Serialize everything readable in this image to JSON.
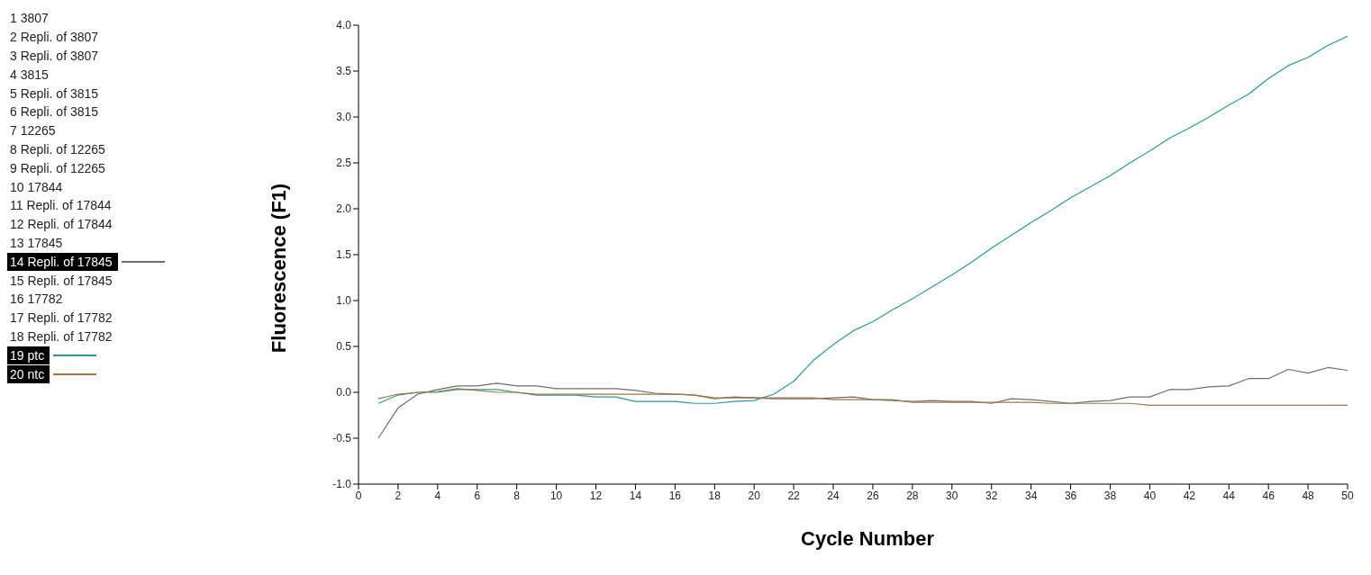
{
  "chart_data": {
    "type": "line",
    "xlabel": "Cycle Number",
    "ylabel": "Fluorescence (F1)",
    "x": [
      1,
      2,
      3,
      4,
      5,
      6,
      7,
      8,
      9,
      10,
      11,
      12,
      13,
      14,
      15,
      16,
      17,
      18,
      19,
      20,
      21,
      22,
      23,
      24,
      25,
      26,
      27,
      28,
      29,
      30,
      31,
      32,
      33,
      34,
      35,
      36,
      37,
      38,
      39,
      40,
      41,
      42,
      43,
      44,
      45,
      46,
      47,
      48,
      49,
      50
    ],
    "xlim": [
      0,
      50
    ],
    "xticks": [
      0,
      2,
      4,
      6,
      8,
      10,
      12,
      14,
      16,
      18,
      20,
      22,
      24,
      26,
      28,
      30,
      32,
      34,
      36,
      38,
      40,
      42,
      44,
      46,
      48,
      50
    ],
    "ylim": [
      -1,
      4
    ],
    "yticks": [
      {
        "value": -1,
        "label": "-1.0"
      },
      {
        "value": -0.5,
        "label": "-0.5"
      },
      {
        "value": 0,
        "label": "0.0"
      },
      {
        "value": 0.5,
        "label": "0.5"
      },
      {
        "value": 1,
        "label": "1.0"
      },
      {
        "value": 1.5,
        "label": "1.5"
      },
      {
        "value": 2,
        "label": "2.0"
      },
      {
        "value": 2.5,
        "label": "2.5"
      },
      {
        "value": 3,
        "label": "3.0"
      },
      {
        "value": 3.5,
        "label": "3.5"
      },
      {
        "value": 4,
        "label": "4.0"
      }
    ],
    "grid": false,
    "legend": "left",
    "marker": "none",
    "line_style": "solid",
    "series": [
      {
        "name": "1 3807",
        "values": [
          null,
          null,
          null,
          null,
          null,
          null,
          null,
          null,
          null,
          null,
          null,
          null,
          null,
          null,
          null,
          null,
          null,
          null,
          null,
          null,
          null,
          null,
          null,
          null,
          null,
          null,
          null,
          null,
          null,
          null,
          null,
          null,
          null,
          null,
          null,
          null,
          null,
          null,
          null,
          null,
          null,
          null,
          null,
          null,
          null,
          null,
          null,
          null,
          null,
          null
        ]
      },
      {
        "name": "2 Repli. of 3807",
        "values": [
          null,
          null,
          null,
          null,
          null,
          null,
          null,
          null,
          null,
          null,
          null,
          null,
          null,
          null,
          null,
          null,
          null,
          null,
          null,
          null,
          null,
          null,
          null,
          null,
          null,
          null,
          null,
          null,
          null,
          null,
          null,
          null,
          null,
          null,
          null,
          null,
          null,
          null,
          null,
          null,
          null,
          null,
          null,
          null,
          null,
          null,
          null,
          null,
          null,
          null
        ]
      },
      {
        "name": "3 Repli. of 3807",
        "values": [
          null,
          null,
          null,
          null,
          null,
          null,
          null,
          null,
          null,
          null,
          null,
          null,
          null,
          null,
          null,
          null,
          null,
          null,
          null,
          null,
          null,
          null,
          null,
          null,
          null,
          null,
          null,
          null,
          null,
          null,
          null,
          null,
          null,
          null,
          null,
          null,
          null,
          null,
          null,
          null,
          null,
          null,
          null,
          null,
          null,
          null,
          null,
          null,
          null,
          null
        ]
      },
      {
        "name": "4 3815",
        "values": [
          null,
          null,
          null,
          null,
          null,
          null,
          null,
          null,
          null,
          null,
          null,
          null,
          null,
          null,
          null,
          null,
          null,
          null,
          null,
          null,
          null,
          null,
          null,
          null,
          null,
          null,
          null,
          null,
          null,
          null,
          null,
          null,
          null,
          null,
          null,
          null,
          null,
          null,
          null,
          null,
          null,
          null,
          null,
          null,
          null,
          null,
          null,
          null,
          null,
          null
        ]
      },
      {
        "name": "5 Repli. of 3815",
        "values": [
          null,
          null,
          null,
          null,
          null,
          null,
          null,
          null,
          null,
          null,
          null,
          null,
          null,
          null,
          null,
          null,
          null,
          null,
          null,
          null,
          null,
          null,
          null,
          null,
          null,
          null,
          null,
          null,
          null,
          null,
          null,
          null,
          null,
          null,
          null,
          null,
          null,
          null,
          null,
          null,
          null,
          null,
          null,
          null,
          null,
          null,
          null,
          null,
          null,
          null
        ]
      },
      {
        "name": "6 Repli. of 3815",
        "values": [
          null,
          null,
          null,
          null,
          null,
          null,
          null,
          null,
          null,
          null,
          null,
          null,
          null,
          null,
          null,
          null,
          null,
          null,
          null,
          null,
          null,
          null,
          null,
          null,
          null,
          null,
          null,
          null,
          null,
          null,
          null,
          null,
          null,
          null,
          null,
          null,
          null,
          null,
          null,
          null,
          null,
          null,
          null,
          null,
          null,
          null,
          null,
          null,
          null,
          null
        ]
      },
      {
        "name": "7 12265",
        "values": [
          null,
          null,
          null,
          null,
          null,
          null,
          null,
          null,
          null,
          null,
          null,
          null,
          null,
          null,
          null,
          null,
          null,
          null,
          null,
          null,
          null,
          null,
          null,
          null,
          null,
          null,
          null,
          null,
          null,
          null,
          null,
          null,
          null,
          null,
          null,
          null,
          null,
          null,
          null,
          null,
          null,
          null,
          null,
          null,
          null,
          null,
          null,
          null,
          null,
          null
        ]
      },
      {
        "name": "8 Repli. of 12265",
        "values": [
          null,
          null,
          null,
          null,
          null,
          null,
          null,
          null,
          null,
          null,
          null,
          null,
          null,
          null,
          null,
          null,
          null,
          null,
          null,
          null,
          null,
          null,
          null,
          null,
          null,
          null,
          null,
          null,
          null,
          null,
          null,
          null,
          null,
          null,
          null,
          null,
          null,
          null,
          null,
          null,
          null,
          null,
          null,
          null,
          null,
          null,
          null,
          null,
          null,
          null
        ]
      },
      {
        "name": "9 Repli. of 12265",
        "values": [
          null,
          null,
          null,
          null,
          null,
          null,
          null,
          null,
          null,
          null,
          null,
          null,
          null,
          null,
          null,
          null,
          null,
          null,
          null,
          null,
          null,
          null,
          null,
          null,
          null,
          null,
          null,
          null,
          null,
          null,
          null,
          null,
          null,
          null,
          null,
          null,
          null,
          null,
          null,
          null,
          null,
          null,
          null,
          null,
          null,
          null,
          null,
          null,
          null,
          null
        ]
      },
      {
        "name": "10 17844",
        "values": [
          null,
          null,
          null,
          null,
          null,
          null,
          null,
          null,
          null,
          null,
          null,
          null,
          null,
          null,
          null,
          null,
          null,
          null,
          null,
          null,
          null,
          null,
          null,
          null,
          null,
          null,
          null,
          null,
          null,
          null,
          null,
          null,
          null,
          null,
          null,
          null,
          null,
          null,
          null,
          null,
          null,
          null,
          null,
          null,
          null,
          null,
          null,
          null,
          null,
          null
        ]
      },
      {
        "name": "11 Repli. of 17844",
        "values": [
          null,
          null,
          null,
          null,
          null,
          null,
          null,
          null,
          null,
          null,
          null,
          null,
          null,
          null,
          null,
          null,
          null,
          null,
          null,
          null,
          null,
          null,
          null,
          null,
          null,
          null,
          null,
          null,
          null,
          null,
          null,
          null,
          null,
          null,
          null,
          null,
          null,
          null,
          null,
          null,
          null,
          null,
          null,
          null,
          null,
          null,
          null,
          null,
          null,
          null
        ]
      },
      {
        "name": "12 Repli. of 17844",
        "values": [
          null,
          null,
          null,
          null,
          null,
          null,
          null,
          null,
          null,
          null,
          null,
          null,
          null,
          null,
          null,
          null,
          null,
          null,
          null,
          null,
          null,
          null,
          null,
          null,
          null,
          null,
          null,
          null,
          null,
          null,
          null,
          null,
          null,
          null,
          null,
          null,
          null,
          null,
          null,
          null,
          null,
          null,
          null,
          null,
          null,
          null,
          null,
          null,
          null,
          null
        ]
      },
      {
        "name": "13 17845",
        "values": [
          null,
          null,
          null,
          null,
          null,
          null,
          null,
          null,
          null,
          null,
          null,
          null,
          null,
          null,
          null,
          null,
          null,
          null,
          null,
          null,
          null,
          null,
          null,
          null,
          null,
          null,
          null,
          null,
          null,
          null,
          null,
          null,
          null,
          null,
          null,
          null,
          null,
          null,
          null,
          null,
          null,
          null,
          null,
          null,
          null,
          null,
          null,
          null,
          null,
          null
        ]
      },
      {
        "name": "14 Repli. of 17845",
        "color": "#6e6e6e",
        "values": [
          -0.5,
          -0.17,
          -0.02,
          0.03,
          0.07,
          0.07,
          0.1,
          0.07,
          0.07,
          0.04,
          0.04,
          0.04,
          0.04,
          0.02,
          -0.01,
          -0.02,
          -0.03,
          -0.07,
          -0.05,
          -0.06,
          -0.07,
          -0.07,
          -0.07,
          -0.06,
          -0.05,
          -0.08,
          -0.09,
          -0.1,
          -0.09,
          -0.1,
          -0.1,
          -0.12,
          -0.07,
          -0.08,
          -0.1,
          -0.12,
          -0.1,
          -0.09,
          -0.05,
          -0.05,
          0.03,
          0.03,
          0.06,
          0.07,
          0.15,
          0.15,
          0.25,
          0.21,
          0.27,
          0.24
        ]
      },
      {
        "name": "15 Repli. of 17845",
        "values": [
          null,
          null,
          null,
          null,
          null,
          null,
          null,
          null,
          null,
          null,
          null,
          null,
          null,
          null,
          null,
          null,
          null,
          null,
          null,
          null,
          null,
          null,
          null,
          null,
          null,
          null,
          null,
          null,
          null,
          null,
          null,
          null,
          null,
          null,
          null,
          null,
          null,
          null,
          null,
          null,
          null,
          null,
          null,
          null,
          null,
          null,
          null,
          null,
          null,
          null
        ]
      },
      {
        "name": "16 17782",
        "values": [
          null,
          null,
          null,
          null,
          null,
          null,
          null,
          null,
          null,
          null,
          null,
          null,
          null,
          null,
          null,
          null,
          null,
          null,
          null,
          null,
          null,
          null,
          null,
          null,
          null,
          null,
          null,
          null,
          null,
          null,
          null,
          null,
          null,
          null,
          null,
          null,
          null,
          null,
          null,
          null,
          null,
          null,
          null,
          null,
          null,
          null,
          null,
          null,
          null,
          null
        ]
      },
      {
        "name": "17 Repli. of 17782",
        "values": [
          null,
          null,
          null,
          null,
          null,
          null,
          null,
          null,
          null,
          null,
          null,
          null,
          null,
          null,
          null,
          null,
          null,
          null,
          null,
          null,
          null,
          null,
          null,
          null,
          null,
          null,
          null,
          null,
          null,
          null,
          null,
          null,
          null,
          null,
          null,
          null,
          null,
          null,
          null,
          null,
          null,
          null,
          null,
          null,
          null,
          null,
          null,
          null,
          null,
          null
        ]
      },
      {
        "name": "18 Repli. of 17782",
        "values": [
          null,
          null,
          null,
          null,
          null,
          null,
          null,
          null,
          null,
          null,
          null,
          null,
          null,
          null,
          null,
          null,
          null,
          null,
          null,
          null,
          null,
          null,
          null,
          null,
          null,
          null,
          null,
          null,
          null,
          null,
          null,
          null,
          null,
          null,
          null,
          null,
          null,
          null,
          null,
          null,
          null,
          null,
          null,
          null,
          null,
          null,
          null,
          null,
          null,
          null
        ]
      },
      {
        "name": "19 ptc",
        "color": "#2a9a9a",
        "values": [
          -0.12,
          -0.03,
          0,
          0,
          0.03,
          0.03,
          0.03,
          0,
          -0.03,
          -0.03,
          -0.03,
          -0.05,
          -0.05,
          -0.1,
          -0.1,
          -0.1,
          -0.12,
          -0.12,
          -0.1,
          -0.09,
          -0.02,
          0.12,
          0.35,
          0.52,
          0.67,
          0.77,
          0.9,
          1.02,
          1.15,
          1.28,
          1.42,
          1.57,
          1.71,
          1.85,
          1.98,
          2.12,
          2.24,
          2.36,
          2.5,
          2.63,
          2.77,
          2.88,
          3.0,
          3.13,
          3.25,
          3.42,
          3.56,
          3.65,
          3.78,
          3.88
        ]
      },
      {
        "name": "20 ntc",
        "color": "#a07840",
        "values": [
          -0.07,
          -0.02,
          0,
          0.01,
          0.04,
          0.02,
          0.0,
          0.0,
          -0.02,
          -0.02,
          -0.02,
          -0.02,
          -0.02,
          -0.02,
          -0.02,
          -0.02,
          -0.03,
          -0.06,
          -0.06,
          -0.06,
          -0.06,
          -0.06,
          -0.06,
          -0.08,
          -0.08,
          -0.08,
          -0.08,
          -0.11,
          -0.11,
          -0.11,
          -0.11,
          -0.11,
          -0.11,
          -0.11,
          -0.12,
          -0.12,
          -0.12,
          -0.12,
          -0.12,
          -0.14,
          -0.14,
          -0.14,
          -0.14,
          -0.14,
          -0.14,
          -0.14,
          -0.14,
          -0.14,
          -0.14,
          -0.14
        ]
      }
    ]
  }
}
